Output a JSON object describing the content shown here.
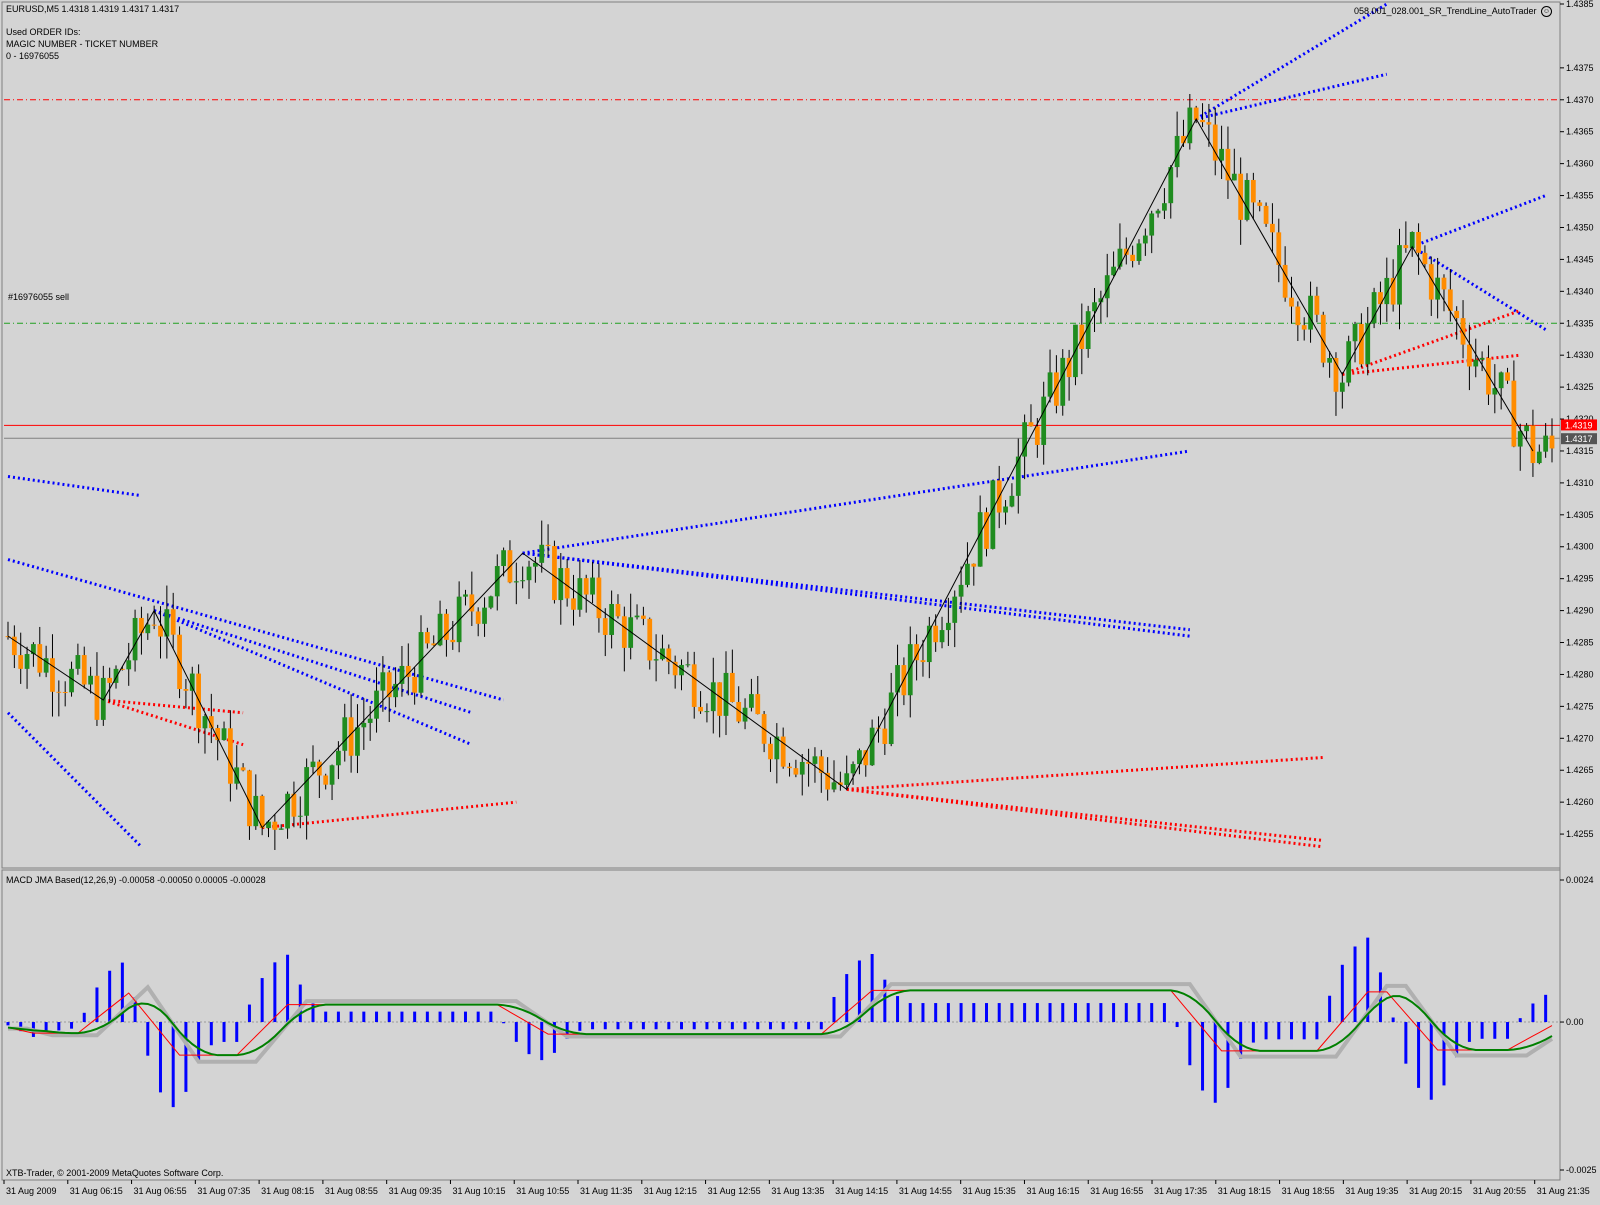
{
  "header": {
    "symbol_line": "EURUSD,M5  1.4318 1.4319 1.4317 1.4317",
    "info_lines": [
      "Used ORDER IDs:",
      "MAGIC NUMBER - TICKET NUMBER",
      "0 - 16976055"
    ],
    "ea_name": "058.001_028.001_SR_TrendLine_AutoTrader",
    "order_label": "#16976055 sell"
  },
  "price_axis": {
    "min": 1.425,
    "max": 1.4385,
    "ticks": [
      "1.4385",
      "1.4375",
      "1.4370",
      "1.4365",
      "1.4360",
      "1.4355",
      "1.4350",
      "1.4345",
      "1.4340",
      "1.4335",
      "1.4330",
      "1.4325",
      "1.4320",
      "1.4315",
      "1.4310",
      "1.4305",
      "1.4300",
      "1.4295",
      "1.4290",
      "1.4285",
      "1.4280",
      "1.4275",
      "1.4270",
      "1.4265",
      "1.4260",
      "1.4255"
    ],
    "tick_values": [
      1.4385,
      1.4375,
      1.437,
      1.4365,
      1.436,
      1.4355,
      1.435,
      1.4345,
      1.434,
      1.4335,
      1.433,
      1.4325,
      1.432,
      1.4315,
      1.431,
      1.4305,
      1.43,
      1.4295,
      1.429,
      1.4285,
      1.428,
      1.4275,
      1.427,
      1.4265,
      1.426,
      1.4255
    ],
    "bid_label": "1.4319",
    "last_label": "1.4317"
  },
  "levels": {
    "resistance": 1.437,
    "order_level": 1.4335,
    "bid": 1.4319,
    "last": 1.4317
  },
  "macd_panel": {
    "title": "MACD JMA Based(12,26,9) -0.00058 -0.00050 0.00005 -0.00028",
    "ticks": [
      "0.0024",
      "0.00",
      "-0.0025"
    ],
    "min": -0.0025,
    "max": 0.0024
  },
  "footer": {
    "copyright": "XTB-Trader, © 2001-2009 MetaQuotes Software Corp."
  },
  "time_axis": {
    "labels": [
      "31 Aug 2009",
      "31 Aug 06:15",
      "31 Aug 06:55",
      "31 Aug 07:35",
      "31 Aug 08:15",
      "31 Aug 08:55",
      "31 Aug 09:35",
      "31 Aug 10:15",
      "31 Aug 10:55",
      "31 Aug 11:35",
      "31 Aug 12:15",
      "31 Aug 12:55",
      "31 Aug 13:35",
      "31 Aug 14:15",
      "31 Aug 14:55",
      "31 Aug 15:35",
      "31 Aug 16:15",
      "31 Aug 16:55",
      "31 Aug 17:35",
      "31 Aug 18:15",
      "31 Aug 18:55",
      "31 Aug 19:35",
      "31 Aug 20:15",
      "31 Aug 20:55",
      "31 Aug 21:35"
    ]
  },
  "colors": {
    "background": "#d4d4d4",
    "bull_candle": "#1f8c1f",
    "bear_candle": "#ff8c00",
    "zigzag": "#000000",
    "support": "#ff0000",
    "resistance_lines": "#0000ff",
    "macd_hist": "#0000ff",
    "macd_signal": "#008000",
    "macd_fast": "#ff0000",
    "macd_slow": "#b0b0b0"
  },
  "chart_data": {
    "type": "candlestick",
    "symbol": "EURUSD",
    "timeframe": "M5",
    "zigzag": [
      {
        "bar": 0,
        "price": 1.4286
      },
      {
        "bar": 15,
        "price": 1.4276
      },
      {
        "bar": 23,
        "price": 1.429
      },
      {
        "bar": 40,
        "price": 1.4256
      },
      {
        "bar": 81,
        "price": 1.4299
      },
      {
        "bar": 132,
        "price": 1.4262
      },
      {
        "bar": 187,
        "price": 1.4367
      },
      {
        "bar": 210,
        "price": 1.4327
      },
      {
        "bar": 221,
        "price": 1.4347
      },
      {
        "bar": 240,
        "price": 1.4315
      }
    ],
    "candles_note": "close path follows zigzag pivots"
  }
}
